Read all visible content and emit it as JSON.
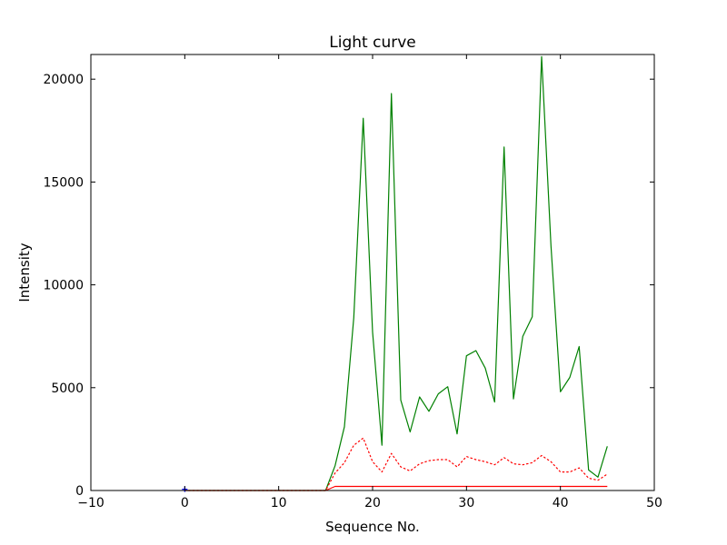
{
  "chart_data": {
    "type": "line",
    "title": "Light curve",
    "xlabel": "Sequence No.",
    "ylabel": "Intensity",
    "xlim": [
      -10,
      50
    ],
    "ylim": [
      0,
      21200
    ],
    "xticks": [
      -10,
      0,
      10,
      20,
      30,
      40,
      50
    ],
    "yticks": [
      0,
      5000,
      10000,
      15000,
      20000
    ],
    "grid": false,
    "legend": "none",
    "series": [
      {
        "color": "#008000",
        "style": "solid",
        "x": [
          0,
          1,
          2,
          3,
          4,
          5,
          6,
          7,
          8,
          9,
          10,
          11,
          12,
          13,
          14,
          15,
          16,
          17,
          18,
          19,
          20,
          21,
          22,
          23,
          24,
          25,
          26,
          27,
          28,
          29,
          30,
          31,
          32,
          33,
          34,
          35,
          36,
          37,
          38,
          39,
          40,
          41,
          42,
          43,
          44,
          45
        ],
        "y": [
          0,
          0,
          0,
          0,
          0,
          0,
          0,
          0,
          0,
          0,
          0,
          0,
          0,
          0,
          0,
          0,
          1200,
          3100,
          8400,
          18100,
          7700,
          2200,
          19300,
          4400,
          2850,
          4550,
          3850,
          4700,
          5050,
          2750,
          6550,
          6800,
          5950,
          4300,
          16700,
          4450,
          7500,
          8450,
          21100,
          11900,
          4800,
          5500,
          7000,
          1000,
          650,
          2150
        ]
      },
      {
        "color": "#ff0000",
        "style": "dotted",
        "x": [
          0,
          1,
          2,
          3,
          4,
          5,
          6,
          7,
          8,
          9,
          10,
          11,
          12,
          13,
          14,
          15,
          16,
          17,
          18,
          19,
          20,
          21,
          22,
          23,
          24,
          25,
          26,
          27,
          28,
          29,
          30,
          31,
          32,
          33,
          34,
          35,
          36,
          37,
          38,
          39,
          40,
          41,
          42,
          43,
          44,
          45
        ],
        "y": [
          0,
          0,
          0,
          0,
          0,
          0,
          0,
          0,
          0,
          0,
          0,
          0,
          0,
          0,
          0,
          0,
          850,
          1350,
          2200,
          2550,
          1400,
          900,
          1800,
          1150,
          950,
          1300,
          1450,
          1500,
          1500,
          1150,
          1650,
          1500,
          1400,
          1250,
          1600,
          1300,
          1250,
          1350,
          1700,
          1400,
          900,
          900,
          1100,
          600,
          500,
          800
        ]
      },
      {
        "color": "#ff0000",
        "style": "solid",
        "x": [
          0,
          1,
          2,
          3,
          4,
          5,
          6,
          7,
          8,
          9,
          10,
          11,
          12,
          13,
          14,
          15,
          16,
          17,
          18,
          19,
          20,
          21,
          22,
          23,
          24,
          25,
          26,
          27,
          28,
          29,
          30,
          31,
          32,
          33,
          34,
          35,
          36,
          37,
          38,
          39,
          40,
          41,
          42,
          43,
          44,
          45
        ],
        "y": [
          0,
          0,
          0,
          0,
          0,
          0,
          0,
          0,
          0,
          0,
          0,
          0,
          0,
          0,
          0,
          0,
          200,
          200,
          200,
          200,
          200,
          200,
          200,
          200,
          200,
          200,
          200,
          200,
          200,
          200,
          200,
          200,
          200,
          200,
          200,
          200,
          200,
          200,
          200,
          200,
          200,
          200,
          200,
          200,
          200,
          200
        ]
      },
      {
        "color": "#0000ff",
        "style": "marker",
        "x": [
          0
        ],
        "y": [
          60
        ]
      }
    ]
  }
}
